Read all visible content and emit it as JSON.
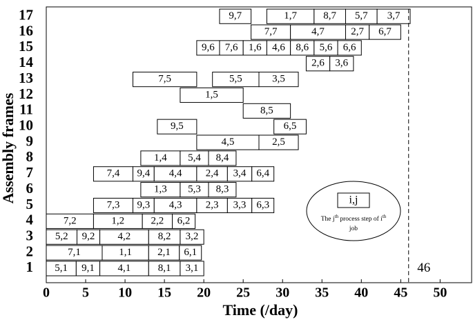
{
  "chart_data": {
    "type": "gantt",
    "xlabel": "Time (/day)",
    "ylabel": "Assembly frames",
    "xlim": [
      0,
      54
    ],
    "xticks": [
      0,
      5,
      10,
      15,
      20,
      25,
      30,
      35,
      40,
      45,
      50
    ],
    "ylim": [
      0.1,
      17.6
    ],
    "yticks": [
      1,
      2,
      3,
      4,
      5,
      6,
      7,
      8,
      9,
      10,
      11,
      12,
      13,
      14,
      15,
      16,
      17
    ],
    "deadline": 46,
    "tasks": [
      {
        "label": "5,1",
        "frame": 1,
        "start": 0,
        "end": 3.8
      },
      {
        "label": "9,1",
        "frame": 1,
        "start": 3.8,
        "end": 6.8
      },
      {
        "label": "4,1",
        "frame": 1,
        "start": 6.8,
        "end": 13
      },
      {
        "label": "8,1",
        "frame": 1,
        "start": 13,
        "end": 17
      },
      {
        "label": "3,1",
        "frame": 1,
        "start": 17,
        "end": 20
      },
      {
        "label": "7,1",
        "frame": 2,
        "start": 0,
        "end": 7.1
      },
      {
        "label": "1,1",
        "frame": 2,
        "start": 7.1,
        "end": 13
      },
      {
        "label": "2,1",
        "frame": 2,
        "start": 13,
        "end": 16.9
      },
      {
        "label": "6,1",
        "frame": 2,
        "start": 16.9,
        "end": 19.7
      },
      {
        "label": "5,2",
        "frame": 3,
        "start": 0,
        "end": 3.9
      },
      {
        "label": "9,2",
        "frame": 3,
        "start": 3.9,
        "end": 6.8
      },
      {
        "label": "4,2",
        "frame": 3,
        "start": 6.8,
        "end": 13
      },
      {
        "label": "8,2",
        "frame": 3,
        "start": 13,
        "end": 17
      },
      {
        "label": "3,2",
        "frame": 3,
        "start": 17,
        "end": 20
      },
      {
        "label": "7,2",
        "frame": 4,
        "start": 0,
        "end": 6
      },
      {
        "label": "1,2",
        "frame": 4,
        "start": 6,
        "end": 12.2
      },
      {
        "label": "2,2",
        "frame": 4,
        "start": 12.2,
        "end": 16
      },
      {
        "label": "6,2",
        "frame": 4,
        "start": 16,
        "end": 18.9
      },
      {
        "label": "7,3",
        "frame": 5,
        "start": 6,
        "end": 11
      },
      {
        "label": "9,3",
        "frame": 5,
        "start": 11,
        "end": 13.7
      },
      {
        "label": "4,3",
        "frame": 5,
        "start": 13.7,
        "end": 19.1
      },
      {
        "label": "2,3",
        "frame": 5,
        "start": 19.1,
        "end": 23
      },
      {
        "label": "3,3",
        "frame": 5,
        "start": 23,
        "end": 26.1
      },
      {
        "label": "6,3",
        "frame": 5,
        "start": 26.1,
        "end": 28.9
      },
      {
        "label": "1,3",
        "frame": 6,
        "start": 12,
        "end": 17
      },
      {
        "label": "5,3",
        "frame": 6,
        "start": 17,
        "end": 20.6
      },
      {
        "label": "8,3",
        "frame": 6,
        "start": 20.6,
        "end": 24.1
      },
      {
        "label": "7,4",
        "frame": 7,
        "start": 6,
        "end": 11
      },
      {
        "label": "9,4",
        "frame": 7,
        "start": 11,
        "end": 13.7
      },
      {
        "label": "4,4",
        "frame": 7,
        "start": 13.7,
        "end": 19.1
      },
      {
        "label": "2,4",
        "frame": 7,
        "start": 19.1,
        "end": 23
      },
      {
        "label": "3,4",
        "frame": 7,
        "start": 23,
        "end": 26.1
      },
      {
        "label": "6,4",
        "frame": 7,
        "start": 26.1,
        "end": 28.9
      },
      {
        "label": "1,4",
        "frame": 8,
        "start": 12,
        "end": 17
      },
      {
        "label": "5,4",
        "frame": 8,
        "start": 17,
        "end": 20.6
      },
      {
        "label": "8,4",
        "frame": 8,
        "start": 20.6,
        "end": 24.1
      },
      {
        "label": "4,5",
        "frame": 9,
        "start": 19.1,
        "end": 27
      },
      {
        "label": "2,5",
        "frame": 9,
        "start": 27,
        "end": 32
      },
      {
        "label": "9,5",
        "frame": 10,
        "start": 14.1,
        "end": 19.1
      },
      {
        "label": "6,5",
        "frame": 10,
        "start": 28.9,
        "end": 33
      },
      {
        "label": "8,5",
        "frame": 11,
        "start": 25,
        "end": 31
      },
      {
        "label": "1,5",
        "frame": 12,
        "start": 17,
        "end": 25
      },
      {
        "label": "7,5",
        "frame": 13,
        "start": 11,
        "end": 19.1
      },
      {
        "label": "5,5",
        "frame": 13,
        "start": 21.1,
        "end": 27
      },
      {
        "label": "3,5",
        "frame": 13,
        "start": 27,
        "end": 32
      },
      {
        "label": "2,6",
        "frame": 14,
        "start": 33,
        "end": 36
      },
      {
        "label": "3,6",
        "frame": 14,
        "start": 36,
        "end": 39
      },
      {
        "label": "9,6",
        "frame": 15,
        "start": 19.1,
        "end": 22
      },
      {
        "label": "7,6",
        "frame": 15,
        "start": 22,
        "end": 25
      },
      {
        "label": "1,6",
        "frame": 15,
        "start": 25,
        "end": 28
      },
      {
        "label": "4,6",
        "frame": 15,
        "start": 28,
        "end": 31
      },
      {
        "label": "8,6",
        "frame": 15,
        "start": 31,
        "end": 34
      },
      {
        "label": "5,6",
        "frame": 15,
        "start": 34,
        "end": 37
      },
      {
        "label": "6,6",
        "frame": 15,
        "start": 37,
        "end": 40
      },
      {
        "label": "7,7",
        "frame": 16,
        "start": 26,
        "end": 31
      },
      {
        "label": "4,7",
        "frame": 16,
        "start": 31,
        "end": 38
      },
      {
        "label": "2,7",
        "frame": 16,
        "start": 38,
        "end": 41
      },
      {
        "label": "6,7",
        "frame": 16,
        "start": 41,
        "end": 45
      },
      {
        "label": "9,7",
        "frame": 17,
        "start": 22,
        "end": 26
      },
      {
        "label": "1,7",
        "frame": 17,
        "start": 28,
        "end": 34
      },
      {
        "label": "8,7",
        "frame": 17,
        "start": 34,
        "end": 38
      },
      {
        "label": "5,7",
        "frame": 17,
        "start": 38,
        "end": 42
      },
      {
        "label": "3,7",
        "frame": 17,
        "start": 42,
        "end": 46.2
      }
    ],
    "legend": {
      "symbol": "i,j",
      "text_parts": [
        "The j",
        "th",
        " process step of i",
        "th"
      ],
      "text_end": "job"
    }
  }
}
